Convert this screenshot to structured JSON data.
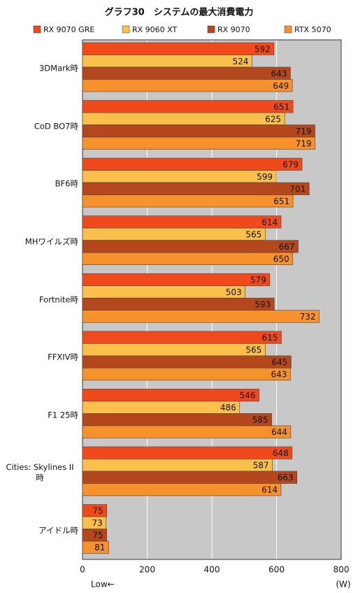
{
  "chart_data": {
    "type": "bar",
    "orientation": "horizontal",
    "title": "グラフ30　システムの最大消費電力",
    "categories": [
      "3DMark時",
      "CoD BO7時",
      "BF6時",
      "MHワイルズ時",
      "Fortnite時",
      "FFXIV時",
      "F1 25時",
      "Cities: Skylines II 時",
      "アイドル時"
    ],
    "series": [
      {
        "name": "RX 9070 GRE",
        "color": "#f04a1c",
        "values": [
          592,
          651,
          679,
          614,
          579,
          615,
          546,
          648,
          75
        ]
      },
      {
        "name": "RX 9060 XT",
        "color": "#fbbf4c",
        "values": [
          524,
          625,
          599,
          565,
          503,
          565,
          486,
          587,
          73
        ]
      },
      {
        "name": "RX 9070",
        "color": "#b5471c",
        "values": [
          643,
          719,
          701,
          667,
          593,
          645,
          585,
          663,
          75
        ]
      },
      {
        "name": "RTX 5070",
        "color": "#f6912b",
        "values": [
          649,
          719,
          651,
          650,
          732,
          643,
          644,
          614,
          81
        ]
      }
    ],
    "xlim": [
      0,
      800
    ],
    "xticks": [
      0,
      200,
      400,
      600,
      800
    ],
    "grid": true,
    "x_label": "(W)",
    "annotation": "Low←",
    "legend": "top"
  }
}
